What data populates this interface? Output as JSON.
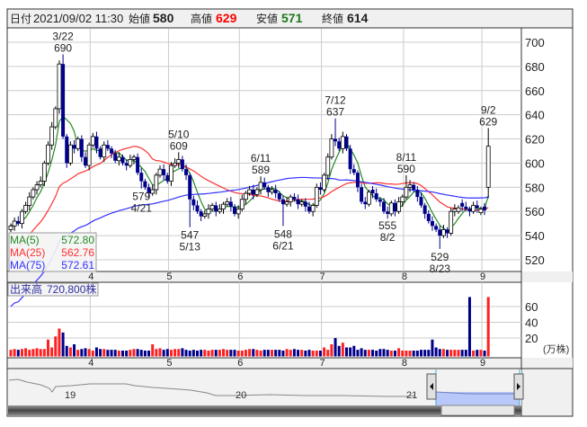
{
  "header": {
    "date_label": "日付",
    "datetime": "2021/09/02 11:30",
    "open_label": "始値",
    "open": "580",
    "high_label": "高値",
    "high": "629",
    "low_label": "安値",
    "low": "571",
    "close_label": "終値",
    "close": "614"
  },
  "legend": {
    "ma5_label": "MA(5)",
    "ma5_value": "572.80",
    "ma25_label": "MA(25)",
    "ma25_value": "562.76",
    "ma75_label": "MA(75)",
    "ma75_value": "572.61"
  },
  "volume_panel": {
    "label": "出来高",
    "value": "720,800株",
    "unit": "(万株)"
  },
  "colors": {
    "up_volume": "#ff2020",
    "down": "#00008b",
    "ma5": "#228b22",
    "ma25": "#ff3030",
    "ma75": "#3030ff",
    "selection": "#b8c8f8"
  },
  "chart_data": {
    "type": "candlestick",
    "price_ylim": [
      510,
      710
    ],
    "price_ticks": [
      "520",
      "540",
      "560",
      "580",
      "600",
      "620",
      "640",
      "660",
      "680",
      "700"
    ],
    "volume_ticks": [
      "20",
      "40",
      "60"
    ],
    "month_ticks": [
      {
        "label": "4",
        "day": 22
      },
      {
        "label": "5",
        "day": 43
      },
      {
        "label": "6",
        "day": 62
      },
      {
        "label": "7",
        "day": 84
      },
      {
        "label": "8",
        "day": 106
      },
      {
        "label": "9",
        "day": 127
      }
    ],
    "close": [
      548,
      552,
      550,
      560,
      565,
      572,
      578,
      582,
      585,
      600,
      615,
      630,
      645,
      682,
      622,
      600,
      615,
      612,
      620,
      605,
      598,
      615,
      622,
      612,
      605,
      615,
      612,
      608,
      602,
      605,
      600,
      598,
      603,
      605,
      592,
      585,
      580,
      575,
      578,
      590,
      595,
      590,
      585,
      598,
      600,
      603,
      595,
      590,
      570,
      565,
      560,
      556,
      558,
      562,
      565,
      560,
      562,
      566,
      568,
      564,
      558,
      562,
      570,
      575,
      578,
      574,
      578,
      584,
      580,
      576,
      578,
      575,
      570,
      566,
      568,
      572,
      570,
      566,
      568,
      564,
      560,
      565,
      580,
      578,
      590,
      605,
      620,
      618,
      612,
      622,
      612,
      595,
      592,
      580,
      568,
      566,
      576,
      575,
      570,
      568,
      560,
      558,
      567,
      560,
      568,
      572,
      580,
      582,
      578,
      572,
      565,
      558,
      552,
      548,
      545,
      540,
      545,
      542,
      560,
      562,
      563,
      564,
      562,
      560,
      565,
      563,
      562,
      561,
      614
    ],
    "last_candle": {
      "open": 580,
      "high": 629,
      "low": 571,
      "close": 614
    },
    "volume": [
      5,
      6,
      5,
      6,
      7,
      5,
      6,
      7,
      6,
      6,
      18,
      8,
      22,
      32,
      27,
      10,
      8,
      12,
      5,
      6,
      7,
      6,
      4,
      8,
      6,
      6,
      5,
      5,
      5,
      4,
      4,
      4,
      5,
      6,
      6,
      5,
      4,
      4,
      12,
      6,
      7,
      5,
      6,
      5,
      6,
      6,
      7,
      5,
      4,
      5,
      4,
      5,
      5,
      4,
      5,
      5,
      5,
      6,
      5,
      5,
      5,
      4,
      4,
      5,
      6,
      6,
      5,
      4,
      5,
      5,
      5,
      5,
      5,
      4,
      6,
      5,
      6,
      5,
      5,
      4,
      5,
      4,
      4,
      4,
      8,
      5,
      12,
      20,
      10,
      14,
      8,
      8,
      10,
      5,
      7,
      5,
      5,
      5,
      4,
      6,
      6,
      5,
      4,
      4,
      7,
      4,
      4,
      4,
      4,
      4,
      5,
      5,
      5,
      18,
      8,
      6,
      6,
      5,
      5,
      5,
      5,
      5,
      5,
      72.08,
      4,
      5,
      5,
      4,
      72.08
    ],
    "annotations": [
      {
        "date": "3/22",
        "value": "690",
        "day": 14,
        "price": 690,
        "pos": "above"
      },
      {
        "date": "4/21",
        "value": "579",
        "day": 35,
        "price": 579,
        "pos": "below"
      },
      {
        "date": "5/10",
        "value": "609",
        "day": 45,
        "price": 609,
        "pos": "above"
      },
      {
        "date": "5/13",
        "value": "547",
        "day": 48,
        "price": 547,
        "pos": "below"
      },
      {
        "date": "6/11",
        "value": "589",
        "day": 67,
        "price": 589,
        "pos": "above"
      },
      {
        "date": "6/21",
        "value": "548",
        "day": 73,
        "price": 548,
        "pos": "below"
      },
      {
        "date": "7/12",
        "value": "637",
        "day": 87,
        "price": 637,
        "pos": "above"
      },
      {
        "date": "8/2",
        "value": "555",
        "day": 101,
        "price": 555,
        "pos": "below"
      },
      {
        "date": "8/11",
        "value": "590",
        "day": 106,
        "price": 590,
        "pos": "above"
      },
      {
        "date": "8/23",
        "value": "529",
        "day": 115,
        "price": 529,
        "pos": "below"
      },
      {
        "date": "9/2",
        "value": "629",
        "day": 128,
        "price": 629,
        "pos": "above"
      }
    ],
    "navigator_years": [
      "19",
      "20",
      "21"
    ]
  }
}
